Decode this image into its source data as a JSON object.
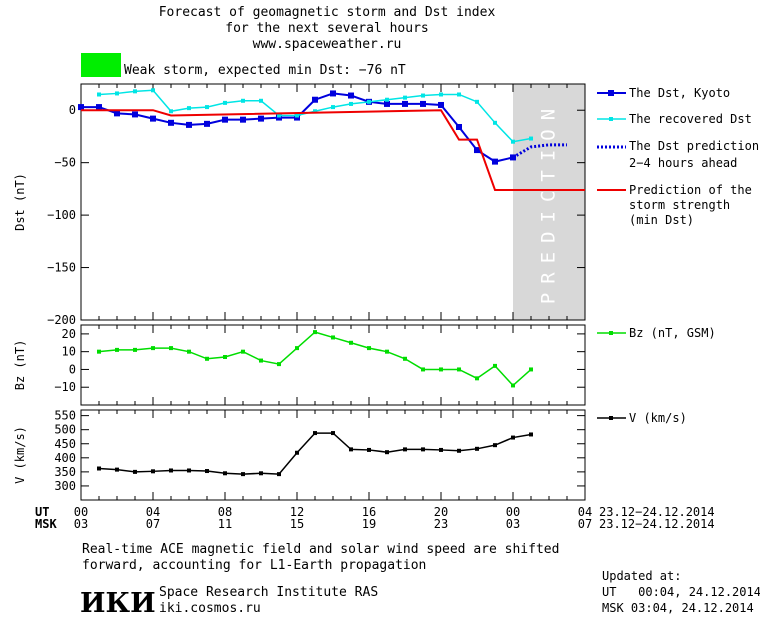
{
  "header": {
    "title_line1": "Forecast of geomagnetic storm and Dst index",
    "title_line2": "for the next several hours",
    "title_line3": "www.spaceweather.ru",
    "storm_label": "Weak storm, expected min Dst: −76 nT",
    "storm_color": "#00ee00"
  },
  "colors": {
    "dst_kyoto": "#0000dd",
    "dst_recovered": "#00e5e5",
    "bz": "#00dd00",
    "v": "#000000",
    "min_dst": "#ee0000",
    "prediction_band": "#d8d8d8"
  },
  "prediction_band_text": "PREDICTION",
  "time_axis": {
    "ut_label": "UT",
    "msk_label": "MSK",
    "ut_ticks": [
      "00",
      "04",
      "08",
      "12",
      "16",
      "20",
      "00",
      "04"
    ],
    "msk_ticks": [
      "03",
      "07",
      "11",
      "15",
      "19",
      "23",
      "03",
      "07"
    ],
    "ut_range": "23.12−24.12.2014",
    "msk_range": "23.12−24.12.2014"
  },
  "legend": {
    "dst_kyoto": "The Dst, Kyoto",
    "dst_recovered": "The recovered Dst",
    "dst_pred_line1": "The Dst prediction",
    "dst_pred_line2": "2−4 hours ahead",
    "min_line1": "Prediction of the",
    "min_line2": "storm strength",
    "min_line3": "(min Dst)",
    "bz": "Bz (nT, GSM)",
    "v": "V (km/s)"
  },
  "footer": {
    "note_line1": "Real-time ACE magnetic field and solar wind speed are shifted",
    "note_line2": "forward, accounting for L1-Earth propagation",
    "logo_text": "ИКИ",
    "institute": "Space Research Institute RAS",
    "website": "iki.cosmos.ru",
    "updated_label": "Updated at:",
    "updated_ut": "UT   00:04, 24.12.2014",
    "updated_msk": "MSK 03:04, 24.12.2014"
  },
  "chart_data": [
    {
      "type": "line",
      "ylabel": "Dst (nT)",
      "xlim": [
        0,
        28
      ],
      "ylim": [
        -200,
        25
      ],
      "yticks": [
        0,
        -50,
        -100,
        -150,
        -200
      ],
      "prediction_band": [
        24,
        28
      ],
      "series": [
        {
          "name": "The Dst, Kyoto",
          "x": [
            0,
            1,
            2,
            3,
            4,
            5,
            6,
            7,
            8,
            9,
            10,
            11,
            12,
            13,
            14,
            15,
            16,
            17,
            18,
            19,
            20,
            21,
            22,
            23,
            24
          ],
          "values": [
            3,
            3,
            -3,
            -4,
            -8,
            -12,
            -14,
            -13,
            -9,
            -9,
            -8,
            -7,
            -7,
            10,
            16,
            14,
            8,
            6,
            6,
            6,
            5,
            -16,
            -38,
            -49,
            -45
          ]
        },
        {
          "name": "The recovered Dst",
          "x": [
            1,
            2,
            3,
            4,
            5,
            6,
            7,
            8,
            9,
            10,
            11,
            12,
            13,
            14,
            15,
            16,
            17,
            18,
            19,
            20,
            21,
            22,
            23,
            24,
            25
          ],
          "values": [
            15,
            16,
            18,
            19,
            -1,
            2,
            3,
            7,
            9,
            9,
            -5,
            -5,
            -1,
            3,
            6,
            8,
            10,
            12,
            14,
            15,
            15,
            8,
            -12,
            -30,
            -27
          ]
        },
        {
          "name": "The Dst prediction 2−4 hours ahead",
          "x": [
            24,
            25,
            26,
            27
          ],
          "values": [
            -45,
            -35,
            -33,
            -33
          ]
        },
        {
          "name": "Prediction of the storm strength (min Dst)",
          "x": [
            0,
            4,
            5,
            20,
            21,
            22,
            23,
            28
          ],
          "values": [
            0,
            0,
            -5,
            0,
            -28,
            -28,
            -76,
            -76
          ]
        }
      ]
    },
    {
      "type": "line",
      "ylabel": "Bz (nT)",
      "xlim": [
        0,
        28
      ],
      "ylim": [
        -20,
        25
      ],
      "yticks": [
        20,
        10,
        0,
        -10
      ],
      "series": [
        {
          "name": "Bz (nT, GSM)",
          "x": [
            1,
            2,
            3,
            4,
            5,
            6,
            7,
            8,
            9,
            10,
            11,
            12,
            13,
            14,
            15,
            16,
            17,
            18,
            19,
            20,
            21,
            22,
            23,
            24,
            25
          ],
          "values": [
            10,
            11,
            11,
            12,
            12,
            10,
            6,
            7,
            10,
            5,
            3,
            12,
            21,
            18,
            15,
            12,
            10,
            6,
            0,
            0,
            0,
            -5,
            2,
            -9,
            0
          ]
        }
      ]
    },
    {
      "type": "line",
      "ylabel": "V (km/s)",
      "xlim": [
        0,
        28
      ],
      "ylim": [
        250,
        570
      ],
      "yticks": [
        550,
        500,
        450,
        400,
        350,
        300
      ],
      "series": [
        {
          "name": "V (km/s)",
          "x": [
            1,
            2,
            3,
            4,
            5,
            6,
            7,
            8,
            9,
            10,
            11,
            12,
            13,
            14,
            15,
            16,
            17,
            18,
            19,
            20,
            21,
            22,
            23,
            24,
            25
          ],
          "values": [
            362,
            358,
            350,
            352,
            355,
            355,
            353,
            345,
            342,
            345,
            342,
            418,
            488,
            488,
            430,
            428,
            420,
            430,
            430,
            428,
            425,
            432,
            445,
            472,
            483
          ]
        }
      ]
    }
  ]
}
